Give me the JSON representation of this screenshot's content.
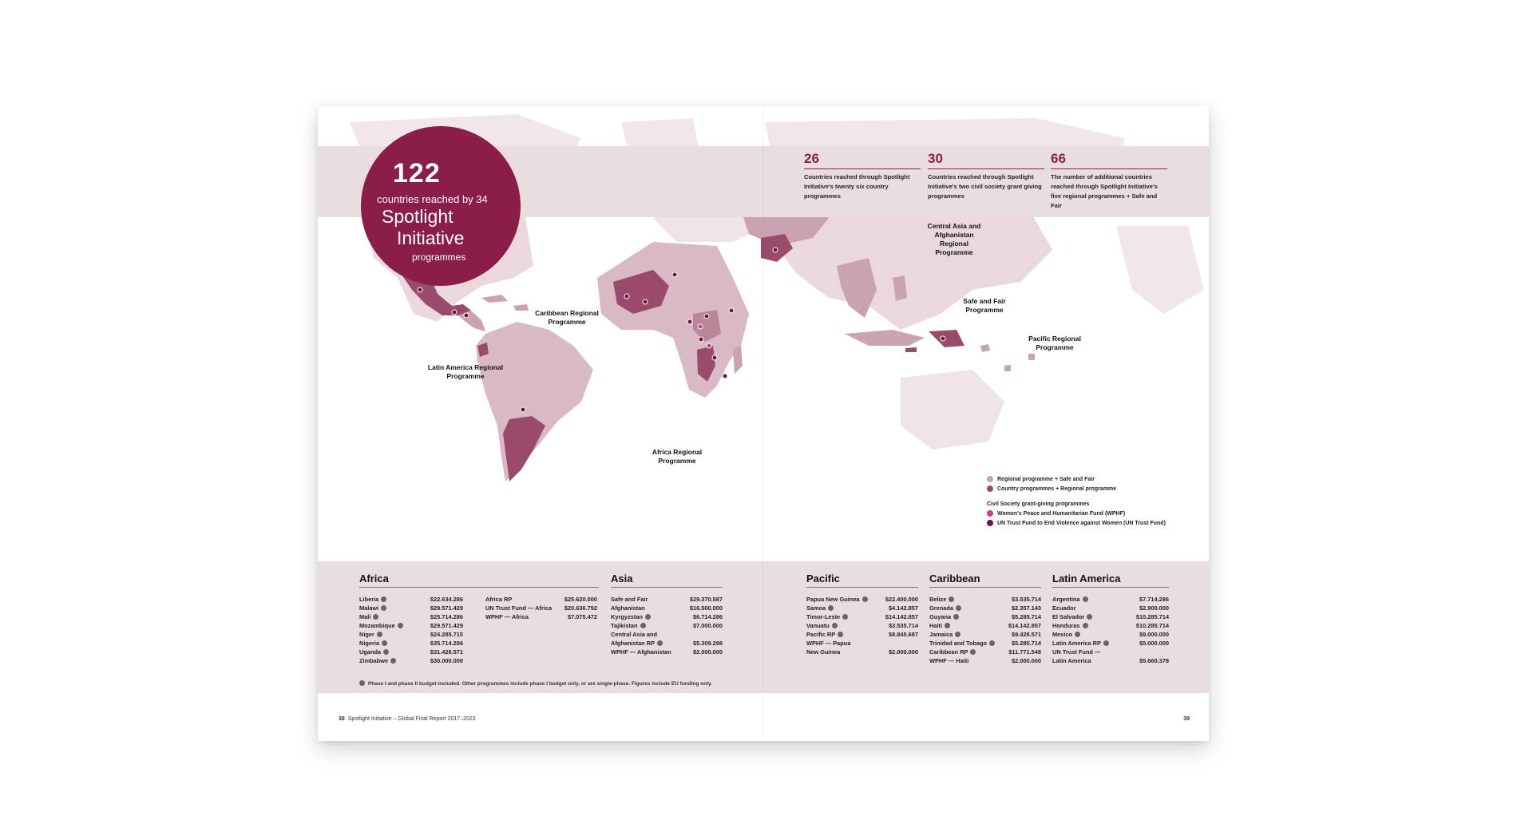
{
  "colors": {
    "accent": "#8a1e48",
    "band": "#eadde0",
    "land": "#efe3e6",
    "regional": "#c9a3b1",
    "country": "#9a4a6a",
    "wphf": "#d03a86",
    "untf": "#6a1840"
  },
  "hero": {
    "number": "122",
    "line1": "countries reached by 34",
    "line2": "Spotlight",
    "line3": "Initiative",
    "line4": "programmes"
  },
  "stats": [
    {
      "number": "26",
      "text": "Countries reached through Spotlight Initiative's twenty six country programmes"
    },
    {
      "number": "30",
      "text": "Countries reached through Spotlight Initiative's two civil society grant giving programmes"
    },
    {
      "number": "66",
      "text": "The number of additional countries reached through Spotlight Initiative's five regional programmes + Safe and Fair"
    }
  ],
  "map_labels": {
    "caribbean": "Caribbean Regional Programme",
    "latam": "Latin America Regional Programme",
    "africa": "Africa Regional Programme",
    "central_asia": "Central Asia and Afghanistan Regional Programme",
    "safe_fair": "Safe and Fair Programme",
    "pacific": "Pacific Regional Programme"
  },
  "legend": {
    "item1": "Regional programme + Safe and Fair",
    "item2": "Country programmes + Regional programme",
    "heading": "Civil Society grant-giving programmes",
    "item3": "Women's Peace and Humanitarian Fund (WPHF)",
    "item4": "UN Trust Fund to End Violence against Women (UN Trust Fund)"
  },
  "regions": {
    "africa": {
      "title": "Africa",
      "col1": [
        {
          "name": "Liberia",
          "value": "$22.634.286",
          "badge": true
        },
        {
          "name": "Malawi",
          "value": "$29.571.429",
          "badge": true
        },
        {
          "name": "Mali",
          "value": "$25.714.286",
          "badge": true
        },
        {
          "name": "Mozambique",
          "value": "$29.571.429",
          "badge": true
        },
        {
          "name": "Niger",
          "value": "$24.285.715",
          "badge": true
        },
        {
          "name": "Nigeria",
          "value": "$35.714.286",
          "badge": true
        },
        {
          "name": "Uganda",
          "value": "$31.428.571",
          "badge": true
        },
        {
          "name": "Zimbabwe",
          "value": "$30.000.000",
          "badge": true
        }
      ],
      "col2": [
        {
          "name": "Africa RP",
          "value": "$25.620.000",
          "badge": false
        },
        {
          "name": "UN Trust Fund — Africa",
          "value": "$20.636.792",
          "badge": false
        },
        {
          "name": "WPHF — Africa",
          "value": "$7.075.472",
          "badge": false
        }
      ]
    },
    "asia": {
      "title": "Asia",
      "col1": [
        {
          "name": "Safe and Fair",
          "value": "$29.370.587",
          "badge": false
        },
        {
          "name": "Afghanistan",
          "value": "$16.500.000",
          "badge": false
        },
        {
          "name": "Kyrgyzstan",
          "value": "$6.714.286",
          "badge": true
        },
        {
          "name": "Tajikistan",
          "value": "$7.000.000",
          "badge": true
        },
        {
          "name": "Central Asia and",
          "value": "",
          "badge": false
        },
        {
          "name": "Afghanistan RP",
          "value": "$5.309.298",
          "badge": true
        },
        {
          "name": "WPHF — Afghanistan",
          "value": "$2.000.000",
          "badge": false
        }
      ]
    },
    "pacific": {
      "title": "Pacific",
      "col1": [
        {
          "name": "Papua New Guinea",
          "value": "$22.400.000",
          "badge": true
        },
        {
          "name": "Samoa",
          "value": "$4.142.857",
          "badge": true
        },
        {
          "name": "Timor-Leste",
          "value": "$14.142.857",
          "badge": true
        },
        {
          "name": "Vanuatu",
          "value": "$3.535.714",
          "badge": true
        },
        {
          "name": "Pacific RP",
          "value": "$8.845.687",
          "badge": true
        },
        {
          "name": "WPHF — Papua",
          "value": "",
          "badge": false
        },
        {
          "name": "New Guinea",
          "value": "$2.000.000",
          "badge": false
        }
      ]
    },
    "caribbean": {
      "title": "Caribbean",
      "col1": [
        {
          "name": "Belize",
          "value": "$3.535.714",
          "badge": true
        },
        {
          "name": "Grenada",
          "value": "$2.357.143",
          "badge": true
        },
        {
          "name": "Guyana",
          "value": "$5.285.714",
          "badge": true
        },
        {
          "name": "Haiti",
          "value": "$14.142.857",
          "badge": true
        },
        {
          "name": "Jamaica",
          "value": "$9.428.571",
          "badge": true
        },
        {
          "name": "Trinidad and Tobago",
          "value": "$5.285.714",
          "badge": true
        },
        {
          "name": "Caribbean RP",
          "value": "$11.771.548",
          "badge": true
        },
        {
          "name": "WPHF — Haiti",
          "value": "$2.000.000",
          "badge": false
        }
      ]
    },
    "latam": {
      "title": "Latin America",
      "col1": [
        {
          "name": "Argentina",
          "value": "$7.714.286",
          "badge": true
        },
        {
          "name": "Ecuador",
          "value": "$2.900.000",
          "badge": false
        },
        {
          "name": "El Salvador",
          "value": "$10.285.714",
          "badge": true
        },
        {
          "name": "Honduras",
          "value": "$10.285.714",
          "badge": true
        },
        {
          "name": "Mexico",
          "value": "$9.000.000",
          "badge": true
        },
        {
          "name": "Latin America RP",
          "value": "$5.000.000",
          "badge": true
        },
        {
          "name": "UN Trust Fund —",
          "value": "",
          "badge": false
        },
        {
          "name": "Latin America",
          "value": "$5.660.378",
          "badge": false
        }
      ]
    }
  },
  "footnote": "Phase I and phase II budget included. Other programmes include phase I budget only, or are single-phase. Figures include EU funding only.",
  "folio_left_num": "38",
  "folio_left_text": "Spotlight Initiative – Global Final Report 2017–2023",
  "folio_right_num": "39"
}
